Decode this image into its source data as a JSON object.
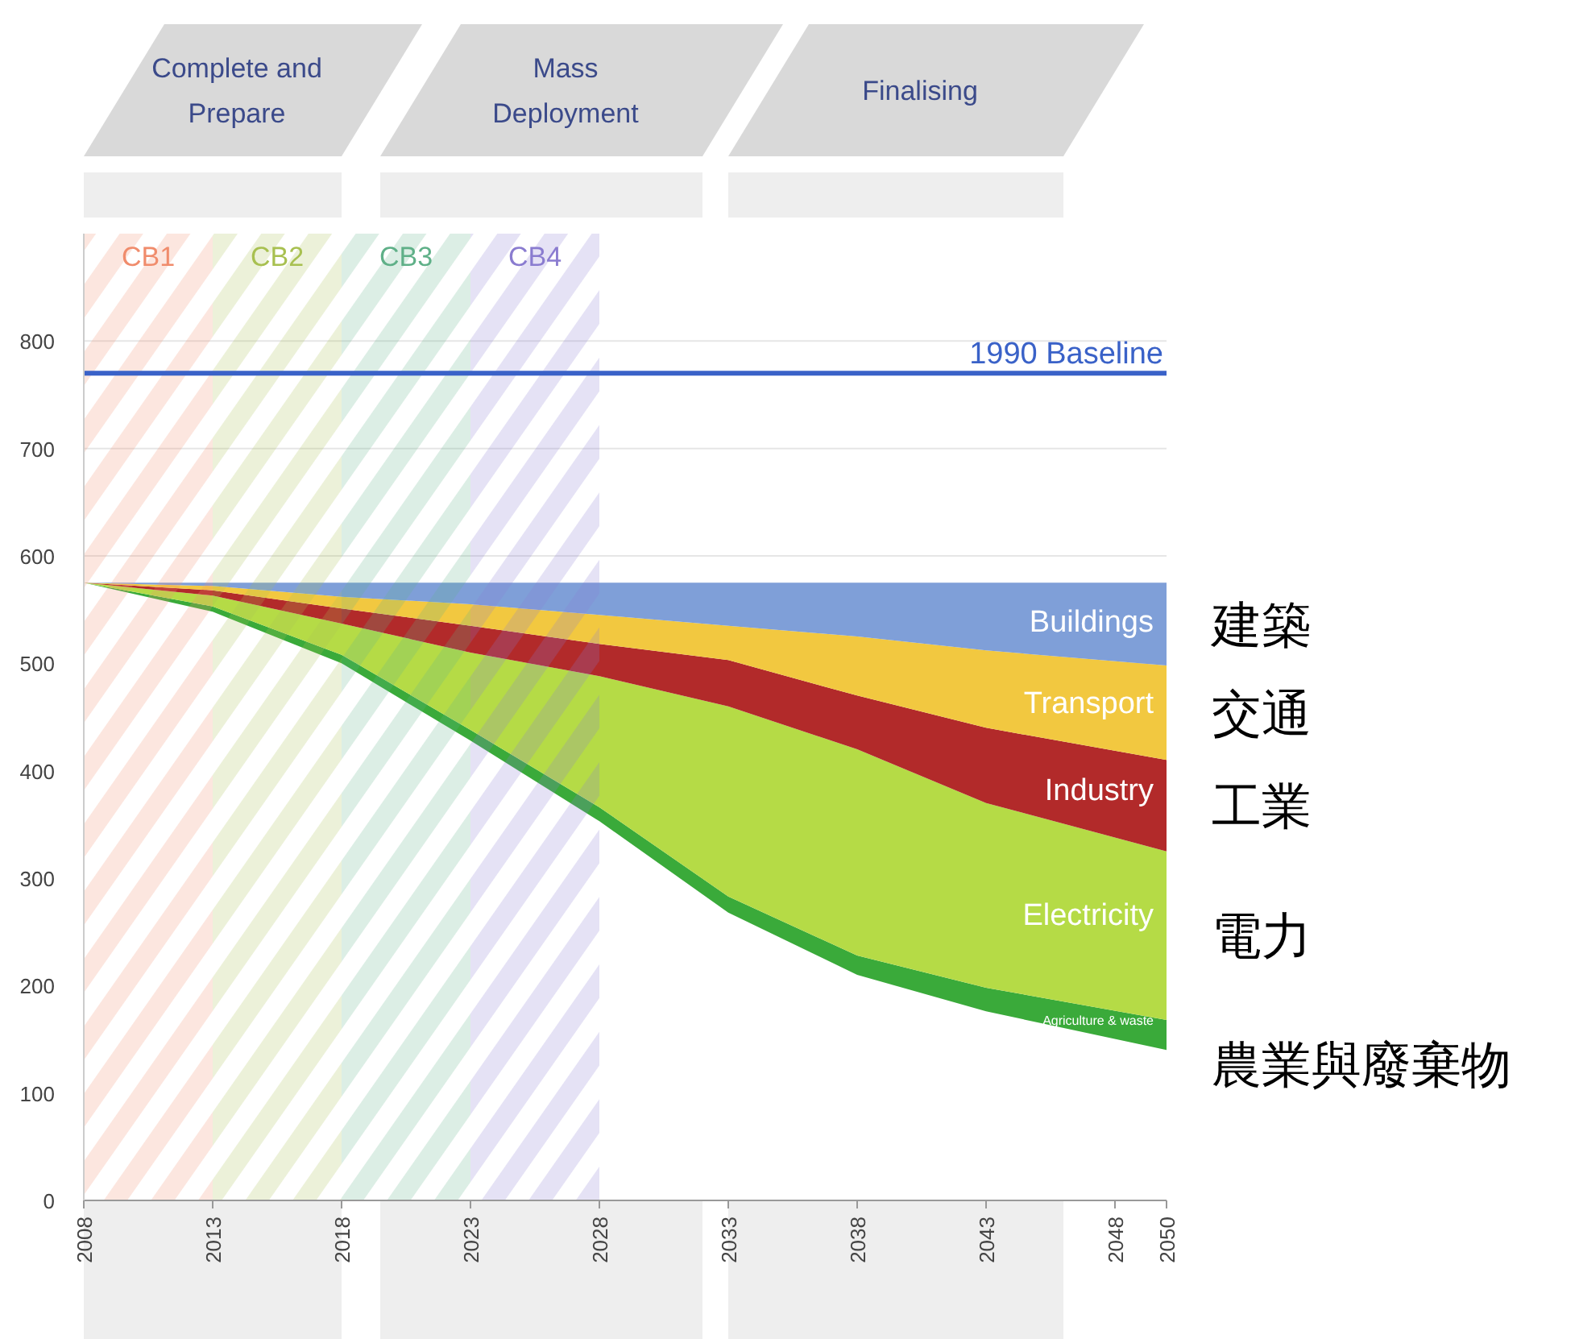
{
  "chart_data": {
    "type": "area",
    "stacked": true,
    "x": [
      2008,
      2013,
      2018,
      2023,
      2028,
      2033,
      2038,
      2043,
      2050
    ],
    "xlim": [
      2008,
      2050
    ],
    "xticks": [
      2008,
      2013,
      2018,
      2023,
      2028,
      2033,
      2038,
      2043,
      2048,
      2050
    ],
    "ylim": [
      0,
      900
    ],
    "yticks": [
      0,
      100,
      200,
      300,
      400,
      500,
      600,
      700,
      800
    ],
    "grid": "y",
    "series": [
      {
        "color": "#ffffff",
        "values": [
          575,
          548,
          500,
          428,
          353,
          268,
          210,
          176,
          140
        ]
      },
      {
        "name": "Agriculture & waste",
        "color": "#3aaa3a",
        "values": [
          0,
          5,
          8,
          10,
          13,
          15,
          18,
          22,
          28
        ]
      },
      {
        "name": "Electricity",
        "color": "#b5db46",
        "values": [
          0,
          10,
          29,
          72,
          122,
          177,
          192,
          172,
          157
        ]
      },
      {
        "name": "Industry",
        "color": "#b22a2a",
        "values": [
          0,
          5,
          14,
          25,
          30,
          43,
          50,
          70,
          85
        ]
      },
      {
        "name": "Transport",
        "color": "#f2c840",
        "values": [
          0,
          4,
          11,
          20,
          27,
          32,
          55,
          72,
          88
        ]
      },
      {
        "name": "Buildings",
        "color": "#7f9fd8",
        "values": [
          0,
          3,
          13,
          20,
          30,
          40,
          50,
          63,
          77
        ]
      }
    ],
    "ref_lines": [
      {
        "axis": "y",
        "value": 770,
        "label": "1990 Baseline",
        "color": "#3a62c8"
      }
    ],
    "bands": [
      {
        "axis": "x",
        "from": 2008,
        "to": 2018,
        "label": "Complete and Prepare"
      },
      {
        "axis": "x",
        "from": 2019.5,
        "to": 2032,
        "label": "Mass Deployment"
      },
      {
        "axis": "x",
        "from": 2033,
        "to": 2046,
        "label": "Finalising"
      },
      {
        "axis": "x",
        "from": 2008,
        "to": 2013,
        "label": "CB1",
        "color": "#f08c6c"
      },
      {
        "axis": "x",
        "from": 2013,
        "to": 2018,
        "label": "CB2",
        "color": "#a8c050"
      },
      {
        "axis": "x",
        "from": 2018,
        "to": 2023,
        "label": "CB3",
        "color": "#5fb088"
      },
      {
        "axis": "x",
        "from": 2023,
        "to": 2028,
        "label": "CB4",
        "color": "#8a7cd0"
      }
    ],
    "annotations": [
      "建築",
      "交通",
      "工業",
      "電力",
      "農業與廢棄物"
    ]
  }
}
